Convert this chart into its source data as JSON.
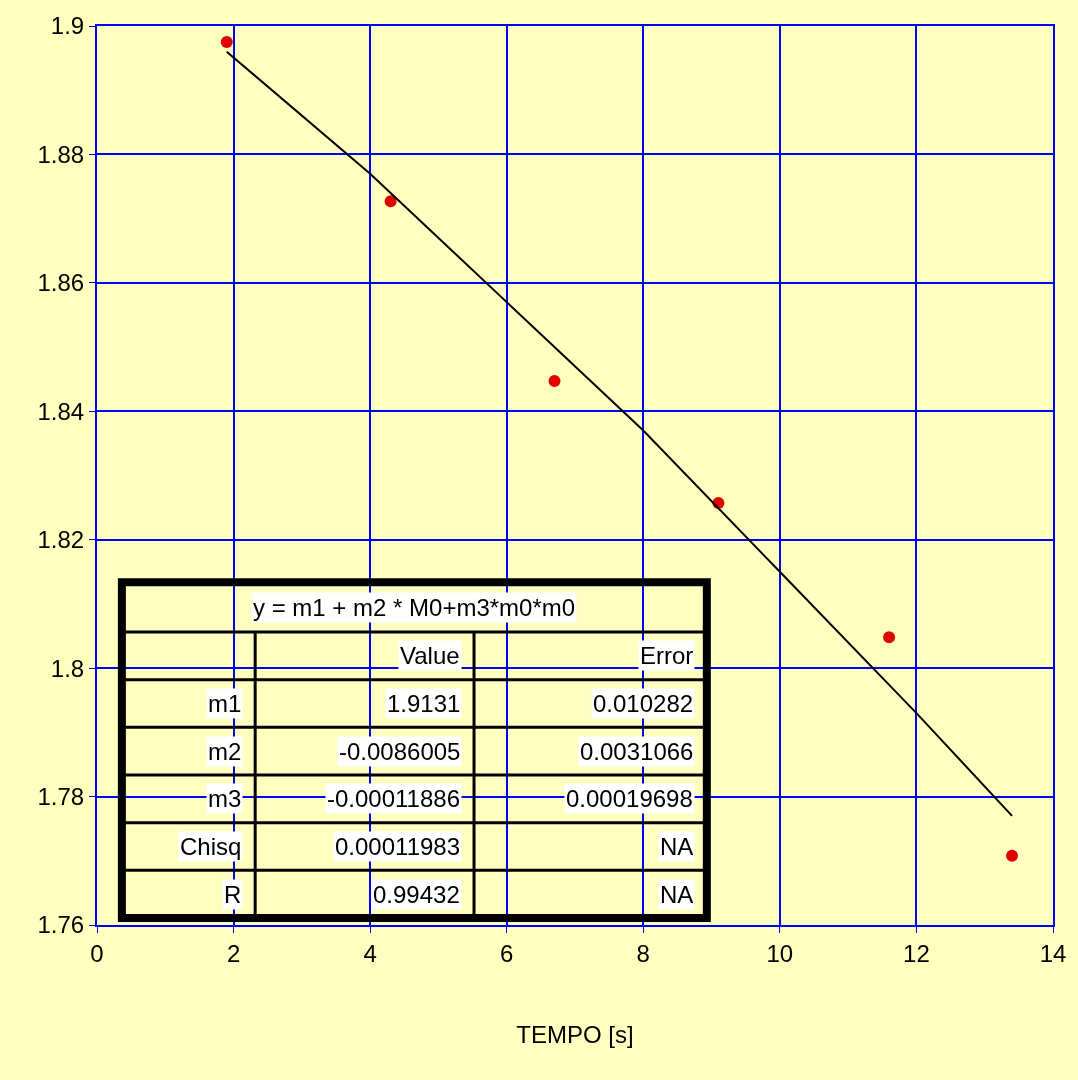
{
  "chart_data": {
    "type": "scatter",
    "xlabel": "TEMPO [s]",
    "xlim": [
      0,
      14
    ],
    "xticks": [
      0,
      2,
      4,
      6,
      8,
      10,
      12,
      14
    ],
    "ylim": [
      1.76,
      1.9
    ],
    "yticks": [
      1.76,
      1.78,
      1.8,
      1.82,
      1.84,
      1.86,
      1.88,
      1.9
    ],
    "grid": true,
    "marker": "circle",
    "series": [
      {
        "color": "#e00000",
        "x": [
          1.9,
          4.3,
          6.7,
          9.1,
          11.6,
          13.4
        ],
        "values": [
          1.8975,
          1.8727,
          1.8447,
          1.8257,
          1.8048,
          1.7708
        ]
      },
      {
        "type": "line",
        "color": "#000000",
        "marker": "none",
        "x": [
          1.9,
          4,
          6,
          8,
          10,
          12,
          13.4
        ],
        "values": [
          1.896,
          1.877,
          1.857,
          1.837,
          1.815,
          1.793,
          1.777
        ]
      }
    ],
    "annotations": [
      "y = m1 + m2 * M0+m3*m0*m0",
      "Value",
      "Error",
      "m1",
      "1.9131",
      "0.010282",
      "m2",
      "-0.0086005",
      "0.0031066",
      "m3",
      "-0.00011886",
      "0.00019698",
      "Chisq",
      "0.00011983",
      "NA",
      "R",
      "0.99432",
      "NA"
    ]
  }
}
